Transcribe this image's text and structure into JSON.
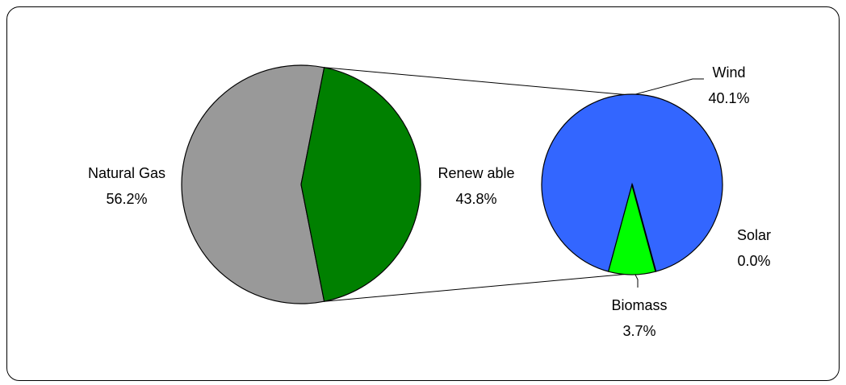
{
  "chart_data": {
    "type": "bar-of-pie",
    "title": "",
    "main_pie": {
      "slices": [
        {
          "name": "Natural Gas",
          "value": 56.2,
          "label": "56.2%",
          "color": "#999999"
        },
        {
          "name": "Renew able",
          "value": 43.8,
          "label": "43.8%",
          "color": "#008000"
        }
      ]
    },
    "secondary_pie": {
      "slices": [
        {
          "name": "Wind",
          "value": 40.1,
          "label": "40.1%",
          "color": "#3366FF"
        },
        {
          "name": "Solar",
          "value": 0.0,
          "label": "0.0%",
          "color": "#000000"
        },
        {
          "name": "Biomass",
          "value": 3.7,
          "label": "3.7%",
          "color": "#00FF00"
        }
      ]
    },
    "legend": "none",
    "grid": false
  }
}
